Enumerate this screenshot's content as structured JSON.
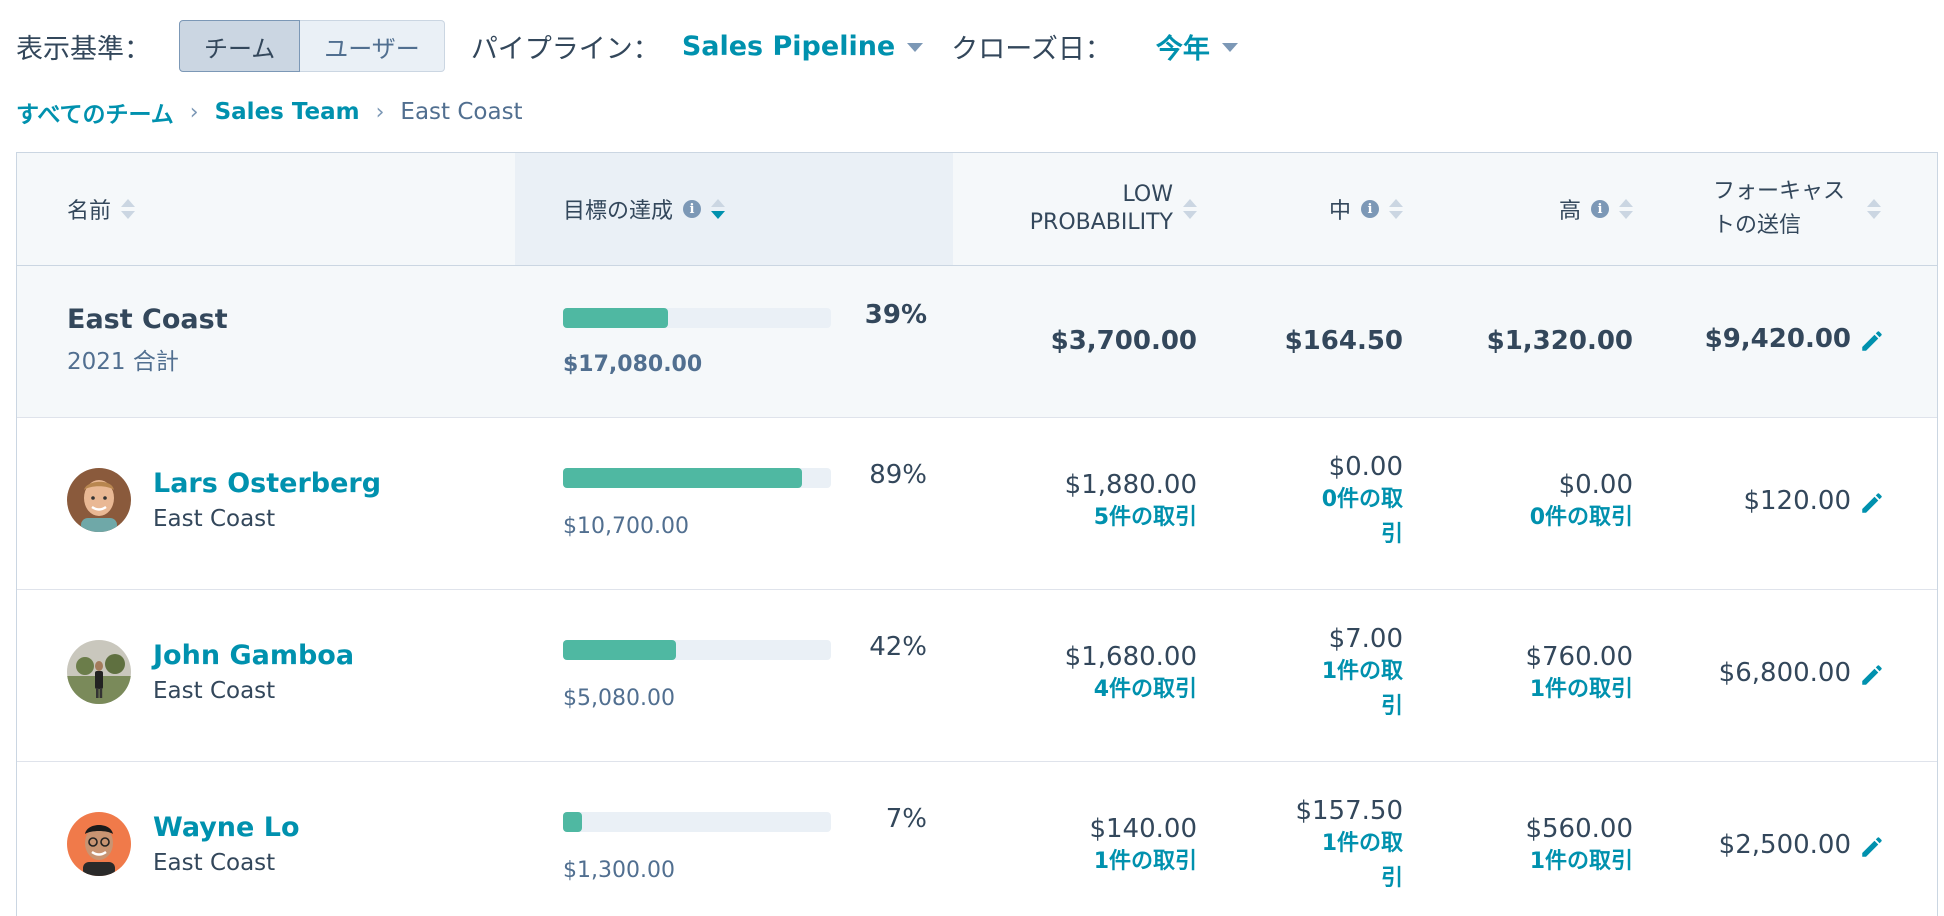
{
  "filters": {
    "view_label": "表示基準：",
    "team_btn": "チーム",
    "user_btn": "ユーザー",
    "pipeline_label": "パイプライン：",
    "pipeline_value": "Sales Pipeline",
    "close_label": "クローズ日：",
    "close_value": "今年"
  },
  "breadcrumb": {
    "all": "すべてのチーム",
    "team": "Sales Team",
    "current": "East Coast"
  },
  "columns": {
    "name": "名前",
    "goal": "目標の達成",
    "low_line1": "LOW",
    "low_line2": "PROBABILITY",
    "mid": "中",
    "high": "高",
    "forecast_line1": "フォーキャス",
    "forecast_line2": "トの送信"
  },
  "summary": {
    "name": "East Coast",
    "sub": "2021 合計",
    "progress": 0.39,
    "pct": "39%",
    "goal": "$17,080.00",
    "low": "$3,700.00",
    "mid": "$164.50",
    "high": "$1,320.00",
    "forecast": "$9,420.00"
  },
  "reps": [
    {
      "name": "Lars Osterberg",
      "team": "East Coast",
      "avatar": "avatar-lars",
      "progress": 0.89,
      "pct": "89%",
      "goal": "$10,700.00",
      "low": "$1,880.00",
      "low_deals": "5件の取引",
      "mid": "$0.00",
      "mid_deals_1": "0件の取",
      "mid_deals_2": "引",
      "high": "$0.00",
      "high_deals": "0件の取引",
      "forecast": "$120.00"
    },
    {
      "name": "John Gamboa",
      "team": "East Coast",
      "avatar": "avatar-john",
      "progress": 0.42,
      "pct": "42%",
      "goal": "$5,080.00",
      "low": "$1,680.00",
      "low_deals": "4件の取引",
      "mid": "$7.00",
      "mid_deals_1": "1件の取",
      "mid_deals_2": "引",
      "high": "$760.00",
      "high_deals": "1件の取引",
      "forecast": "$6,800.00"
    },
    {
      "name": "Wayne Lo",
      "team": "East Coast",
      "avatar": "avatar-wayne",
      "progress": 0.07,
      "pct": "7%",
      "goal": "$1,300.00",
      "low": "$140.00",
      "low_deals": "1件の取引",
      "mid": "$157.50",
      "mid_deals_1": "1件の取",
      "mid_deals_2": "引",
      "high": "$560.00",
      "high_deals": "1件の取引",
      "forecast": "$2,500.00"
    }
  ],
  "colors": {
    "accent": "#0091ae",
    "progress": "#4fb8a2",
    "text": "#33475b"
  }
}
